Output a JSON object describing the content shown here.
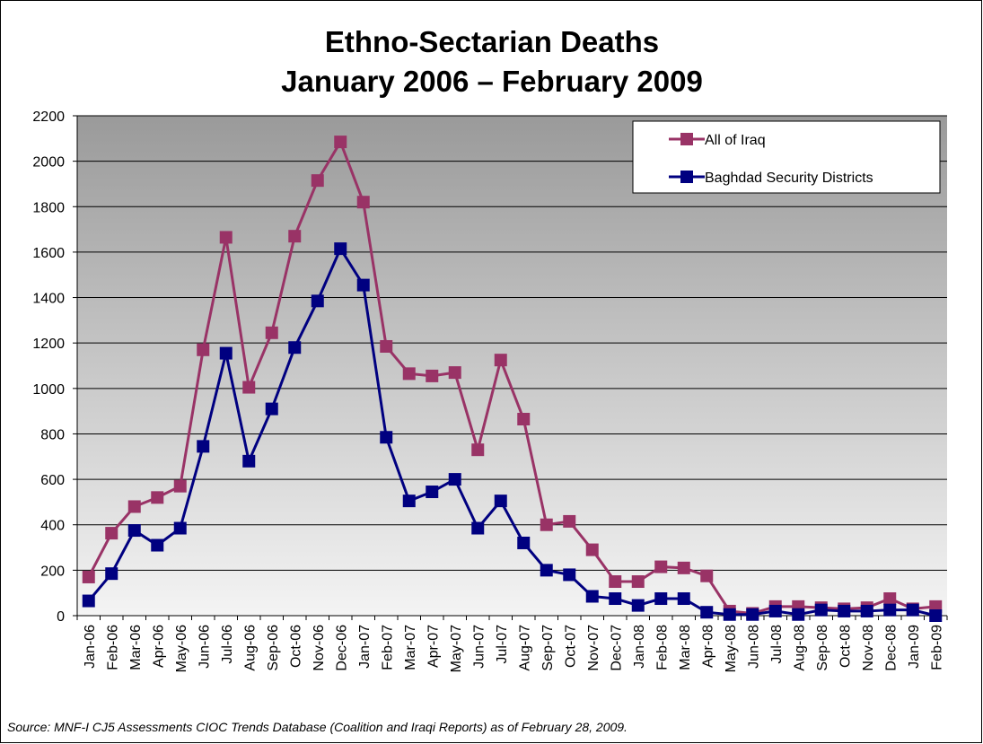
{
  "chart_data": {
    "type": "line",
    "title": "Ethno-Sectarian Deaths",
    "subtitle": "January 2006 – February 2009",
    "source": "Source:  MNF-I CJ5 Assessments CIOC Trends Database (Coalition and Iraqi Reports) as of February 28, 2009.",
    "categories": [
      "Jan-06",
      "Feb-06",
      "Mar-06",
      "Apr-06",
      "May-06",
      "Jun-06",
      "Jul-06",
      "Aug-06",
      "Sep-06",
      "Oct-06",
      "Nov-06",
      "Dec-06",
      "Jan-07",
      "Feb-07",
      "Mar-07",
      "Apr-07",
      "May-07",
      "Jun-07",
      "Jul-07",
      "Aug-07",
      "Sep-07",
      "Oct-07",
      "Nov-07",
      "Dec-07",
      "Jan-08",
      "Feb-08",
      "Mar-08",
      "Apr-08",
      "May-08",
      "Jun-08",
      "Jul-08",
      "Aug-08",
      "Sep-08",
      "Oct-08",
      "Nov-08",
      "Dec-08",
      "Jan-09",
      "Feb-09"
    ],
    "series": [
      {
        "name": "All of Iraq",
        "color": "#993366",
        "values": [
          170,
          363,
          480,
          520,
          570,
          1170,
          1665,
          1005,
          1245,
          1670,
          1915,
          2085,
          1820,
          1185,
          1065,
          1055,
          1070,
          730,
          1125,
          865,
          400,
          415,
          290,
          150,
          150,
          215,
          210,
          175,
          20,
          10,
          40,
          40,
          35,
          30,
          35,
          75,
          30,
          40
        ]
      },
      {
        "name": "Baghdad Security Districts",
        "color": "#000080",
        "values": [
          65,
          185,
          375,
          310,
          385,
          745,
          1155,
          680,
          910,
          1180,
          1385,
          1615,
          1455,
          785,
          505,
          545,
          600,
          385,
          505,
          320,
          200,
          180,
          85,
          75,
          45,
          75,
          75,
          15,
          5,
          5,
          20,
          5,
          25,
          20,
          20,
          25,
          25,
          0
        ]
      }
    ],
    "ylim": [
      0,
      2200
    ],
    "yticks": [
      0,
      200,
      400,
      600,
      800,
      1000,
      1200,
      1400,
      1600,
      1800,
      2000,
      2200
    ],
    "grid": true,
    "legend": "top-right"
  }
}
